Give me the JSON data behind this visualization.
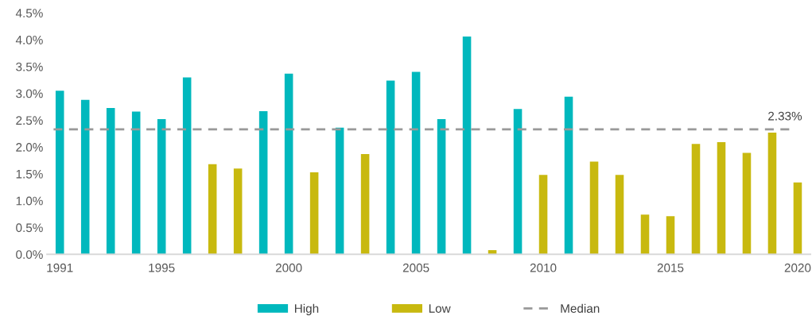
{
  "chart_data": {
    "type": "bar",
    "x": [
      1991,
      1992,
      1993,
      1994,
      1995,
      1996,
      1997,
      1998,
      1999,
      2000,
      2001,
      2002,
      2003,
      2004,
      2005,
      2006,
      2007,
      2008,
      2009,
      2010,
      2011,
      2012,
      2013,
      2014,
      2015,
      2016,
      2017,
      2018,
      2019,
      2020
    ],
    "series": [
      {
        "name": "High",
        "color": "#00b8bd",
        "values": [
          3.05,
          2.88,
          2.73,
          2.66,
          2.52,
          3.3,
          null,
          null,
          2.67,
          3.37,
          null,
          2.36,
          null,
          3.24,
          3.4,
          2.52,
          4.06,
          null,
          2.71,
          null,
          2.94,
          null,
          null,
          null,
          null,
          null,
          null,
          null,
          null,
          null
        ]
      },
      {
        "name": "Low",
        "color": "#c8b90f",
        "values": [
          null,
          null,
          null,
          null,
          null,
          null,
          1.68,
          1.6,
          null,
          null,
          1.53,
          null,
          1.87,
          null,
          null,
          null,
          null,
          0.08,
          null,
          1.48,
          null,
          1.73,
          1.48,
          0.74,
          0.71,
          2.06,
          2.09,
          1.89,
          2.27,
          1.34
        ]
      }
    ],
    "xlim": [
      1990.5,
      2020.5
    ],
    "xticks": [
      1991,
      1995,
      2000,
      2005,
      2010,
      2015,
      2020
    ],
    "ylim": [
      0,
      4.5
    ],
    "yticks": [
      {
        "value": 0,
        "label": "0.0%"
      },
      {
        "value": 0.5,
        "label": "0.5%"
      },
      {
        "value": 1,
        "label": "1.0%"
      },
      {
        "value": 1.5,
        "label": "1.5%"
      },
      {
        "value": 2,
        "label": "2.0%"
      },
      {
        "value": 2.5,
        "label": "2.5%"
      },
      {
        "value": 3,
        "label": "3.0%"
      },
      {
        "value": 3.5,
        "label": "3.5%"
      },
      {
        "value": 4,
        "label": "4.0%"
      },
      {
        "value": 4.5,
        "label": "4.5%"
      }
    ],
    "ref_lines": [
      {
        "axis": "y",
        "value": 2.33,
        "label": "Median",
        "color": "#999999",
        "line_style": "dashed"
      }
    ],
    "annotations": [
      {
        "text": "2.33%",
        "x": 2019.5,
        "y": 2.33
      }
    ],
    "grid": false,
    "legend": "bottom"
  }
}
